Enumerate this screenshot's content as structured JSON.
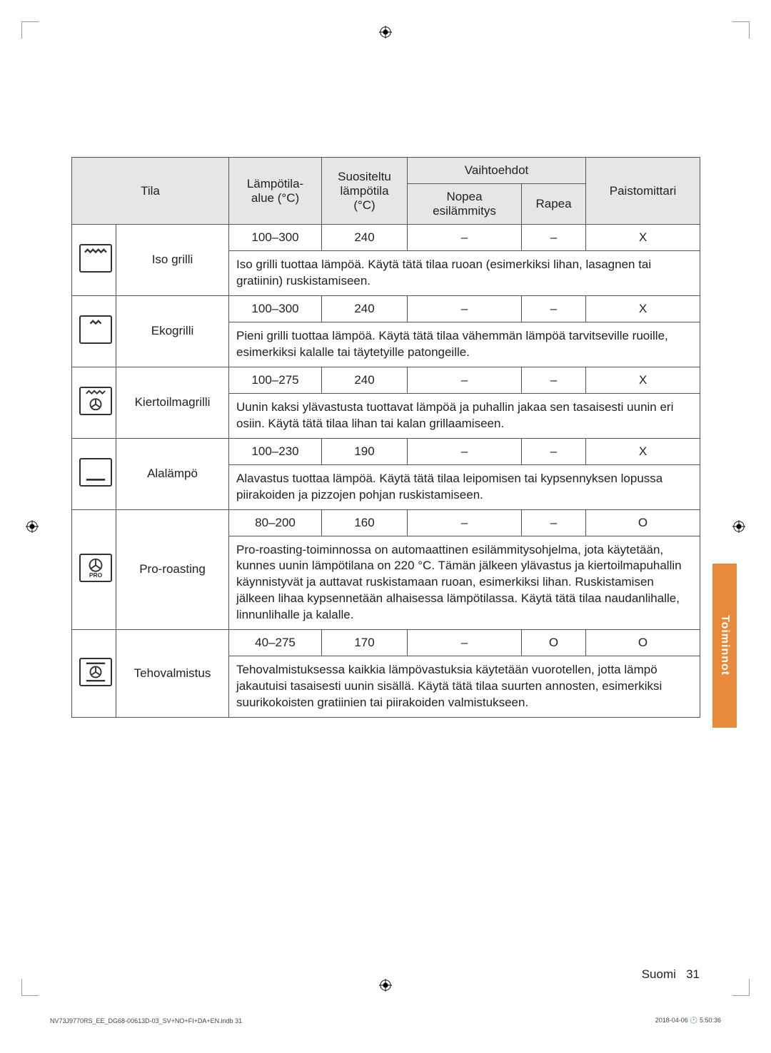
{
  "header": {
    "tila": "Tila",
    "lampotila_alue": "Lämpötila-alue (°C)",
    "suositeltu": "Suositeltu lämpötila (°C)",
    "vaihtoehdot": "Vaihtoehdot",
    "nopea": "Nopea esilämmitys",
    "rapea": "Rapea",
    "paistomittari": "Paistomittari"
  },
  "rows": [
    {
      "name": "Iso grilli",
      "range": "100–300",
      "temp": "240",
      "nopea": "–",
      "rapea": "–",
      "probe": "X",
      "desc": "Iso grilli tuottaa lämpöä. Käytä tätä tilaa ruoan (esimerkiksi lihan, lasagnen tai gratiinin) ruskistamiseen."
    },
    {
      "name": "Ekogrilli",
      "range": "100–300",
      "temp": "240",
      "nopea": "–",
      "rapea": "–",
      "probe": "X",
      "desc": "Pieni grilli tuottaa lämpöä. Käytä tätä tilaa vähemmän lämpöä tarvitseville ruoille, esimerkiksi kalalle tai täytetyille patongeille."
    },
    {
      "name": "Kiertoilmagrilli",
      "range": "100–275",
      "temp": "240",
      "nopea": "–",
      "rapea": "–",
      "probe": "X",
      "desc": "Uunin kaksi ylävastusta tuottavat lämpöä ja puhallin jakaa sen tasaisesti uunin eri osiin. Käytä tätä tilaa lihan tai kalan grillaamiseen."
    },
    {
      "name": "Alalämpö",
      "range": "100–230",
      "temp": "190",
      "nopea": "–",
      "rapea": "–",
      "probe": "X",
      "desc": "Alavastus tuottaa lämpöä. Käytä tätä tilaa leipomisen tai kypsennyksen lopussa piirakoiden ja pizzojen pohjan ruskistamiseen."
    },
    {
      "name": "Pro-roasting",
      "range": "80–200",
      "temp": "160",
      "nopea": "–",
      "rapea": "–",
      "probe": "O",
      "desc": "Pro-roasting-toiminnossa on automaattinen esilämmitysohjelma, jota käytetään, kunnes uunin lämpötilana on 220 °C. Tämän jälkeen ylävastus ja kiertoilmapuhallin käynnistyvät ja auttavat ruskistamaan ruoan, esimerkiksi lihan. Ruskistamisen jälkeen lihaa kypsennetään alhaisessa lämpötilassa. Käytä tätä tilaa naudanlihalle, linnunlihalle ja kalalle."
    },
    {
      "name": "Tehovalmistus",
      "range": "40–275",
      "temp": "170",
      "nopea": "–",
      "rapea": "O",
      "probe": "O",
      "desc": "Tehovalmistuksessa kaikkia lämpövastuksia käytetään vuorotellen, jotta lämpö jakautuisi tasaisesti uunin sisällä. Käytä tätä tilaa suurten annosten, esimerkiksi suurikokoisten gratiinien tai piirakoiden valmistukseen."
    }
  ],
  "side_tab": "Toiminnot",
  "footer_lang": "Suomi",
  "footer_page": "31",
  "print_left": "NV73J9770RS_EE_DG68-00613D-03_SV+NO+FI+DA+EN.indb   31",
  "print_right": "2018-04-06   🕐 5:50:36",
  "colors": {
    "header_bg": "#e6e6e6",
    "border": "#555555",
    "tab_bg": "#e78a3c",
    "text": "#222222"
  }
}
